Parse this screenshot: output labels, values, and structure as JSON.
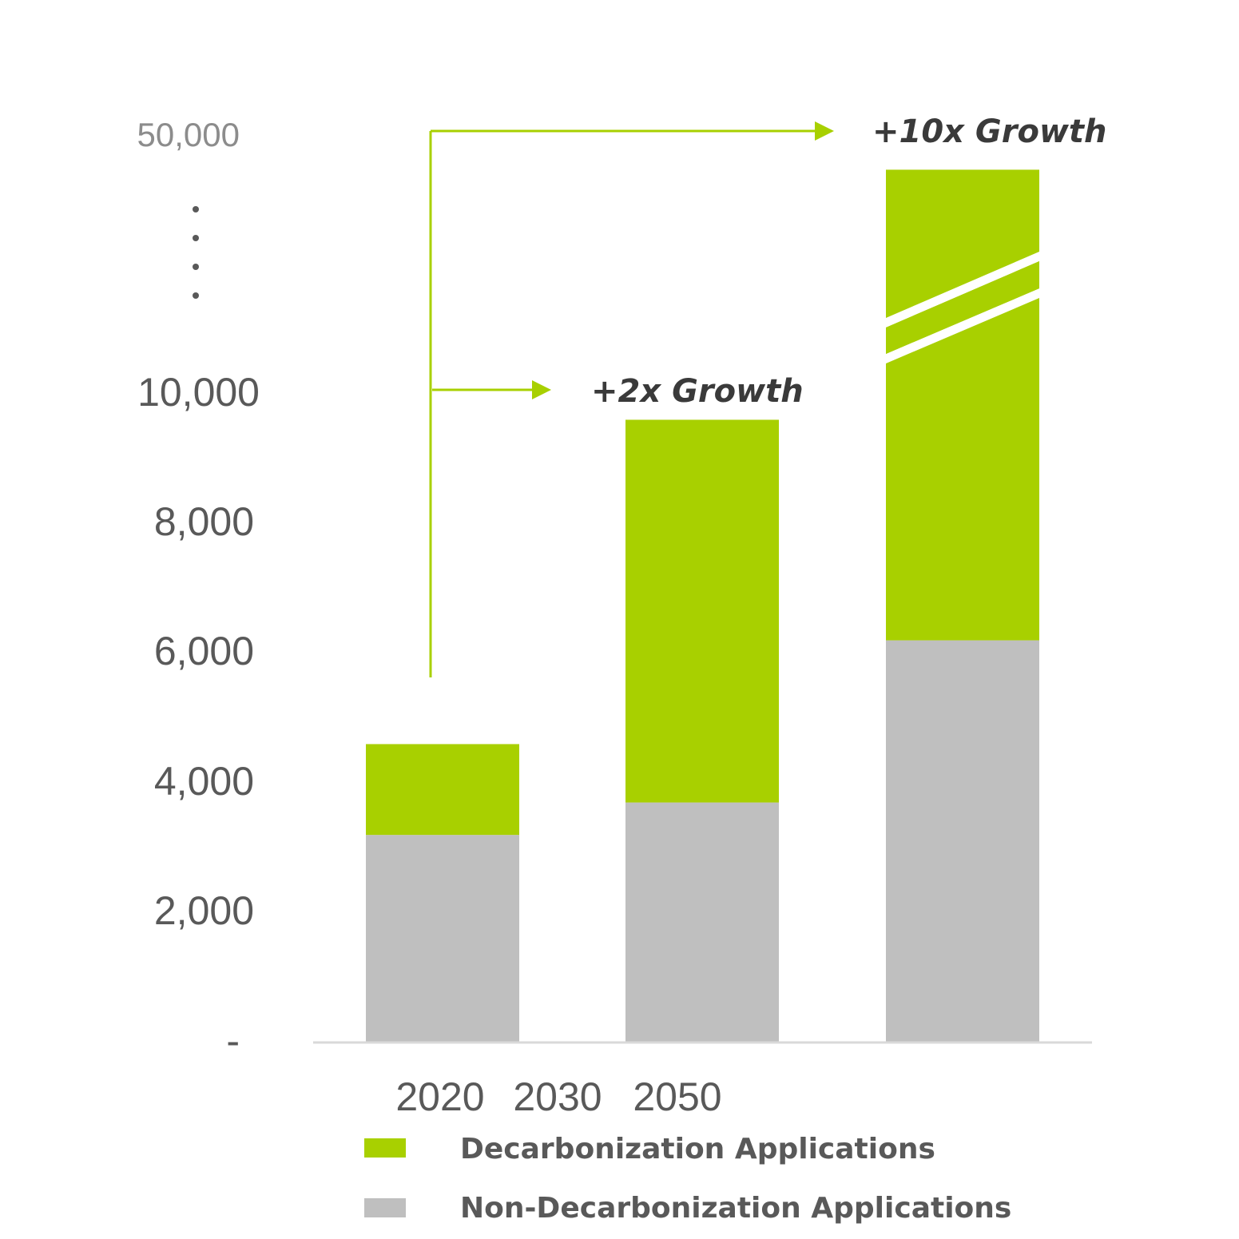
{
  "chart_data": {
    "type": "bar",
    "stacked": true,
    "categories": [
      "2020",
      "2030",
      "2050"
    ],
    "series": [
      {
        "name": "Non-Decarbonization Applications",
        "color": "#bfbfbf",
        "values": [
          3200,
          3700,
          6200
        ]
      },
      {
        "name": "Decarbonization Applications",
        "color": "#a8d000",
        "values": [
          1400,
          5900,
          40000
        ]
      }
    ],
    "axis_break": {
      "from": 10000,
      "to": 50000,
      "break_on_category": "2050"
    },
    "ytick_labels": [
      "-",
      "2,000",
      "4,000",
      "6,000",
      "8,000",
      "10,000",
      "50,000"
    ],
    "ytick_values": [
      0,
      2000,
      4000,
      6000,
      8000,
      10000,
      50000
    ],
    "annotations": [
      {
        "text": "+2x Growth",
        "target_category": "2030"
      },
      {
        "text": "+10x Growth",
        "target_category": "2050"
      }
    ],
    "legend": {
      "placement": "bottom",
      "entries": [
        {
          "label": "Decarbonization Applications",
          "color": "#a8d000"
        },
        {
          "label": "Non-Decarbonization Applications",
          "color": "#bfbfbf"
        }
      ]
    },
    "grid": false,
    "accent_color": "#a8d000",
    "axis_color": "#d9d9d9"
  }
}
